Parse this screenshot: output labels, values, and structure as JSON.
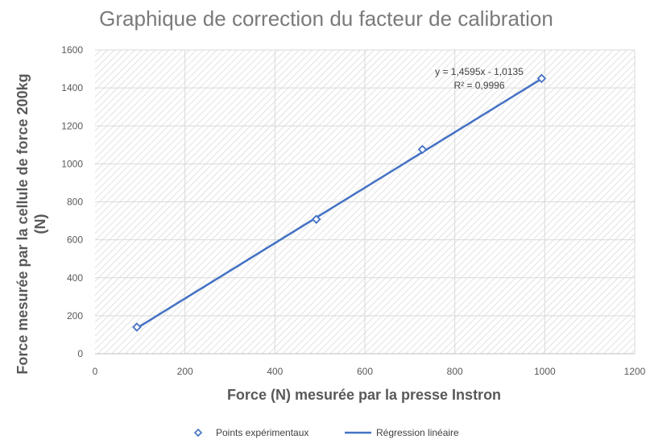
{
  "chart_data": {
    "type": "scatter",
    "title": "Graphique de correction du facteur de calibration",
    "xlabel": "Force (N) mesurée par la presse Instron",
    "ylabel_line1": "Force mesurée par la cellule de force 200kg",
    "ylabel_line2": "(N)",
    "xlim": [
      0,
      1200
    ],
    "ylim": [
      0,
      1600
    ],
    "xticks": [
      0,
      200,
      400,
      600,
      800,
      1000,
      1200
    ],
    "yticks": [
      0,
      200,
      400,
      600,
      800,
      1000,
      1200,
      1400,
      1600
    ],
    "grid": true,
    "legend_position": "bottom",
    "series": [
      {
        "name": "Points expérimentaux",
        "marker": "diamond-open",
        "color": "#4472c4",
        "points": [
          {
            "x": 93,
            "y": 140
          },
          {
            "x": 492,
            "y": 708
          },
          {
            "x": 728,
            "y": 1076
          },
          {
            "x": 993,
            "y": 1450
          }
        ]
      },
      {
        "name": "Régression linéaire",
        "kind": "line",
        "color": "#4472c4",
        "slope": 1.4595,
        "intercept": -1.0135,
        "x_range": [
          93,
          993
        ]
      }
    ],
    "annotations": {
      "equation": "y = 1,4595x - 1,0135",
      "r_squared": "R² = 0,9996"
    }
  }
}
